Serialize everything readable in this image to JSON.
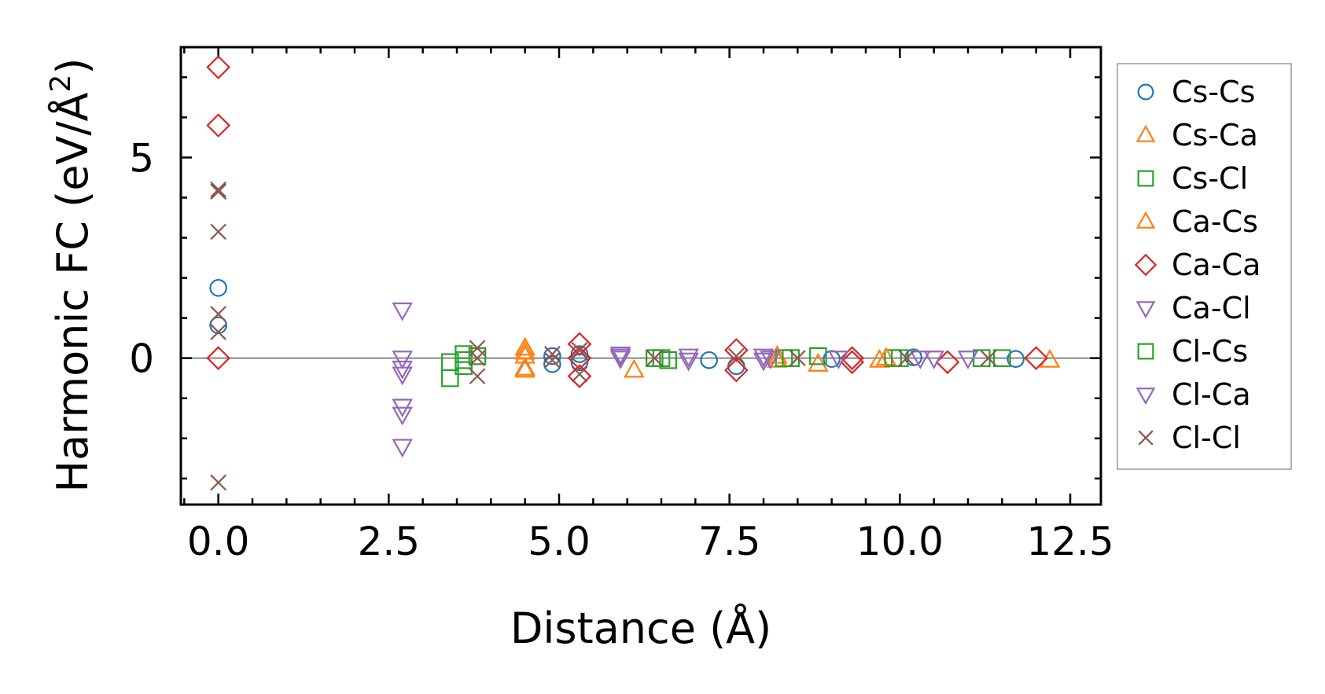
{
  "chart_data": {
    "type": "scatter",
    "title": "",
    "xlabel": "Distance (Å)",
    "ylabel_main": "Harmonic FC (eV/Å",
    "ylabel_sup": "2",
    "ylabel_close": ")",
    "xlim": [
      -0.55,
      12.95
    ],
    "ylim": [
      -3.65,
      7.75
    ],
    "xticks": [
      0.0,
      2.5,
      5.0,
      7.5,
      10.0,
      12.5
    ],
    "xtick_labels": [
      "0.0",
      "2.5",
      "5.0",
      "7.5",
      "10.0",
      "12.5"
    ],
    "xminor_step": 0.5,
    "yticks": [
      0,
      5
    ],
    "ytick_labels": [
      "0",
      "5"
    ],
    "yminor_step": 1,
    "reference_line_y": 0,
    "legend_position": "right, outside plot",
    "series": [
      {
        "name": "Cs-Cs",
        "marker": "circle",
        "color": "#1f77b4",
        "points": [
          [
            0.0,
            1.75
          ],
          [
            0.0,
            0.82
          ],
          [
            4.9,
            -0.15
          ],
          [
            4.9,
            0.05
          ],
          [
            5.3,
            -0.1
          ],
          [
            5.3,
            0.1
          ],
          [
            7.2,
            -0.05
          ],
          [
            7.6,
            -0.2
          ],
          [
            9.0,
            -0.02
          ],
          [
            10.2,
            0.02
          ],
          [
            11.7,
            -0.02
          ]
        ]
      },
      {
        "name": "Cs-Ca",
        "marker": "triangle-up",
        "color": "#ff7f0e",
        "points": [
          [
            4.5,
            0.25
          ],
          [
            4.5,
            -0.25
          ],
          [
            4.5,
            0.05
          ],
          [
            6.1,
            -0.3
          ],
          [
            8.2,
            -0.05
          ],
          [
            8.8,
            -0.15
          ],
          [
            9.7,
            -0.05
          ],
          [
            12.2,
            -0.05
          ]
        ]
      },
      {
        "name": "Cs-Cl",
        "marker": "square",
        "color": "#2ca02c",
        "points": [
          [
            3.4,
            -0.5
          ],
          [
            3.4,
            -0.1
          ],
          [
            3.6,
            -0.05
          ],
          [
            3.6,
            0.1
          ],
          [
            3.8,
            0.05
          ],
          [
            6.4,
            0.0
          ],
          [
            6.6,
            -0.05
          ],
          [
            8.3,
            0.0
          ],
          [
            8.8,
            0.05
          ],
          [
            9.9,
            0.0
          ],
          [
            11.2,
            0.0
          ],
          [
            11.5,
            0.0
          ]
        ]
      },
      {
        "name": "Ca-Cs",
        "marker": "triangle-up",
        "color": "#ff7f0e",
        "points": [
          [
            4.5,
            -0.3
          ],
          [
            4.5,
            0.15
          ],
          [
            8.2,
            0.05
          ],
          [
            9.8,
            0.0
          ]
        ]
      },
      {
        "name": "Ca-Ca",
        "marker": "diamond",
        "color": "#d62728",
        "points": [
          [
            0.0,
            7.25
          ],
          [
            0.0,
            5.8
          ],
          [
            0.0,
            0.0
          ],
          [
            5.3,
            0.35
          ],
          [
            5.3,
            -0.45
          ],
          [
            5.3,
            0.0
          ],
          [
            7.6,
            0.2
          ],
          [
            7.6,
            -0.3
          ],
          [
            9.3,
            0.0
          ],
          [
            9.3,
            -0.1
          ],
          [
            10.7,
            -0.1
          ],
          [
            12.0,
            0.0
          ]
        ]
      },
      {
        "name": "Ca-Cl",
        "marker": "triangle-down",
        "color": "#9467bd",
        "points": [
          [
            2.7,
            1.2
          ],
          [
            2.7,
            0.0
          ],
          [
            2.7,
            -0.25
          ],
          [
            2.7,
            -0.4
          ],
          [
            2.7,
            -1.2
          ],
          [
            2.7,
            -1.4
          ],
          [
            2.7,
            -2.2
          ],
          [
            5.9,
            0.1
          ],
          [
            5.9,
            0.0
          ],
          [
            6.9,
            -0.05
          ],
          [
            8.0,
            0.05
          ],
          [
            8.0,
            -0.05
          ],
          [
            9.1,
            0.0
          ],
          [
            10.3,
            0.0
          ],
          [
            11.0,
            0.0
          ]
        ]
      },
      {
        "name": "Cl-Cs",
        "marker": "square",
        "color": "#2ca02c",
        "points": [
          [
            3.6,
            -0.2
          ],
          [
            6.5,
            0.0
          ],
          [
            8.4,
            0.0
          ],
          [
            10.0,
            0.0
          ]
        ]
      },
      {
        "name": "Cl-Ca",
        "marker": "triangle-down",
        "color": "#9467bd",
        "points": [
          [
            5.9,
            0.05
          ],
          [
            6.9,
            0.05
          ],
          [
            8.1,
            0.0
          ],
          [
            10.5,
            0.0
          ]
        ]
      },
      {
        "name": "Cl-Cl",
        "marker": "x",
        "color": "#8c564b",
        "points": [
          [
            0.0,
            4.2
          ],
          [
            0.0,
            4.15
          ],
          [
            0.0,
            3.15
          ],
          [
            0.0,
            1.1
          ],
          [
            0.0,
            0.65
          ],
          [
            0.0,
            -3.1
          ],
          [
            3.8,
            0.25
          ],
          [
            3.8,
            -0.45
          ],
          [
            3.8,
            0.0
          ],
          [
            4.9,
            0.1
          ],
          [
            4.9,
            -0.05
          ],
          [
            5.3,
            0.2
          ],
          [
            5.3,
            -0.4
          ],
          [
            6.4,
            0.0
          ],
          [
            7.6,
            0.05
          ],
          [
            8.5,
            0.0
          ],
          [
            10.1,
            0.0
          ],
          [
            11.3,
            0.0
          ]
        ]
      }
    ]
  }
}
